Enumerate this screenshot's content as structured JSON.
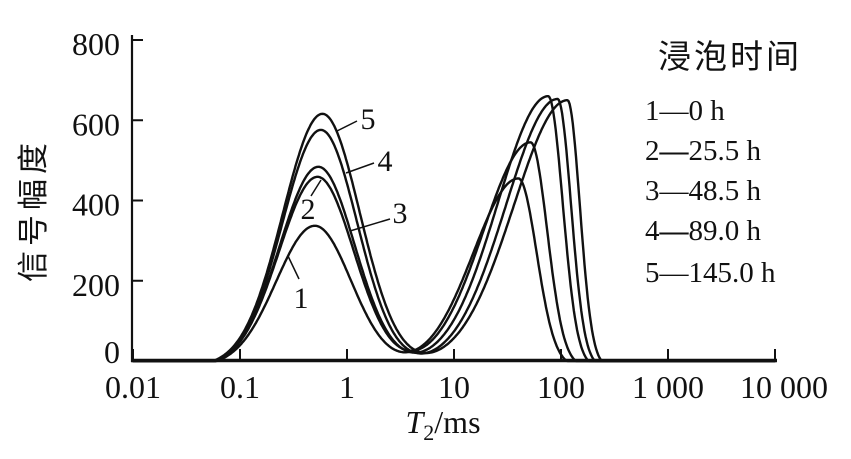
{
  "figure": {
    "background": "#ffffff",
    "ink_color": "#111111"
  },
  "chart_data": {
    "type": "line",
    "title": "",
    "xlabel": "T2/ms",
    "xlabel_parts": {
      "symbol": "T",
      "subscript": "2",
      "unit": "/ms"
    },
    "ylabel": "信号幅度",
    "x_scale": "log",
    "xlim_ms": [
      0.01,
      10000
    ],
    "ylim": [
      0,
      800
    ],
    "grid": "off",
    "x_ticks": [
      {
        "value": 0.01,
        "label": "0.01"
      },
      {
        "value": 0.1,
        "label": "0.1"
      },
      {
        "value": 1,
        "label": "1"
      },
      {
        "value": 10,
        "label": "10"
      },
      {
        "value": 100,
        "label": "100"
      },
      {
        "value": 1000,
        "label": "1 000"
      },
      {
        "value": 10000,
        "label": "10 000"
      }
    ],
    "y_ticks": [
      {
        "value": 0,
        "label": "0"
      },
      {
        "value": 200,
        "label": "200"
      },
      {
        "value": 400,
        "label": "400"
      },
      {
        "value": 600,
        "label": "600"
      },
      {
        "value": 800,
        "label": "800"
      }
    ],
    "legend": {
      "title": "浸泡时间",
      "separator": "—",
      "position": "upper right",
      "entries": [
        {
          "num": "1",
          "time": "0 h",
          "dash_weight": "normal"
        },
        {
          "num": "2",
          "time": "25.5 h",
          "dash_weight": "bold"
        },
        {
          "num": "3",
          "time": "48.5 h",
          "dash_weight": "normal"
        },
        {
          "num": "4",
          "time": "89.0 h",
          "dash_weight": "bold"
        },
        {
          "num": "5",
          "time": "145.0 h",
          "dash_weight": "normal"
        }
      ]
    },
    "series": [
      {
        "label": "1",
        "soak_time": "0 h",
        "left_peak": {
          "t2_ms": 0.5,
          "amplitude": 337,
          "sigma_left_decades": 0.36,
          "sigma_right_decades": 0.34
        },
        "right_peak": {
          "t2_ms": 40,
          "amplitude": 455,
          "sigma_left_decades": 0.42,
          "sigma_right_decades": 0.17
        },
        "annotation": {
          "x": 301,
          "y": 308,
          "leader": [
            299,
            279,
            288,
            256
          ]
        }
      },
      {
        "label": "2",
        "soak_time": "25.5 h",
        "left_peak": {
          "t2_ms": 0.53,
          "amplitude": 459,
          "sigma_left_decades": 0.36,
          "sigma_right_decades": 0.34
        },
        "right_peak": {
          "t2_ms": 52,
          "amplitude": 545,
          "sigma_left_decades": 0.44,
          "sigma_right_decades": 0.155
        },
        "annotation": {
          "x": 308,
          "y": 219,
          "leader": [
            311,
            196,
            321,
            180
          ]
        }
      },
      {
        "label": "3",
        "soak_time": "48.5 h",
        "left_peak": {
          "t2_ms": 0.54,
          "amplitude": 484,
          "sigma_left_decades": 0.36,
          "sigma_right_decades": 0.34
        },
        "right_peak": {
          "t2_ms": 76,
          "amplitude": 660,
          "sigma_left_decades": 0.47,
          "sigma_right_decades": 0.135
        },
        "annotation": {
          "x": 400,
          "y": 223,
          "leader": [
            390,
            219,
            350,
            231
          ]
        }
      },
      {
        "label": "4",
        "soak_time": "89.0 h",
        "left_peak": {
          "t2_ms": 0.57,
          "amplitude": 576,
          "sigma_left_decades": 0.36,
          "sigma_right_decades": 0.34
        },
        "right_peak": {
          "t2_ms": 93,
          "amplitude": 653,
          "sigma_left_decades": 0.48,
          "sigma_right_decades": 0.125
        },
        "annotation": {
          "x": 385,
          "y": 171,
          "leader": [
            374,
            163,
            346,
            173
          ]
        }
      },
      {
        "label": "5",
        "soak_time": "145.0 h",
        "left_peak": {
          "t2_ms": 0.59,
          "amplitude": 616,
          "sigma_left_decades": 0.37,
          "sigma_right_decades": 0.35
        },
        "right_peak": {
          "t2_ms": 115,
          "amplitude": 650,
          "sigma_left_decades": 0.5,
          "sigma_right_decades": 0.115
        },
        "annotation": {
          "x": 368,
          "y": 129,
          "leader": [
            357,
            121,
            337,
            131
          ]
        }
      }
    ]
  }
}
